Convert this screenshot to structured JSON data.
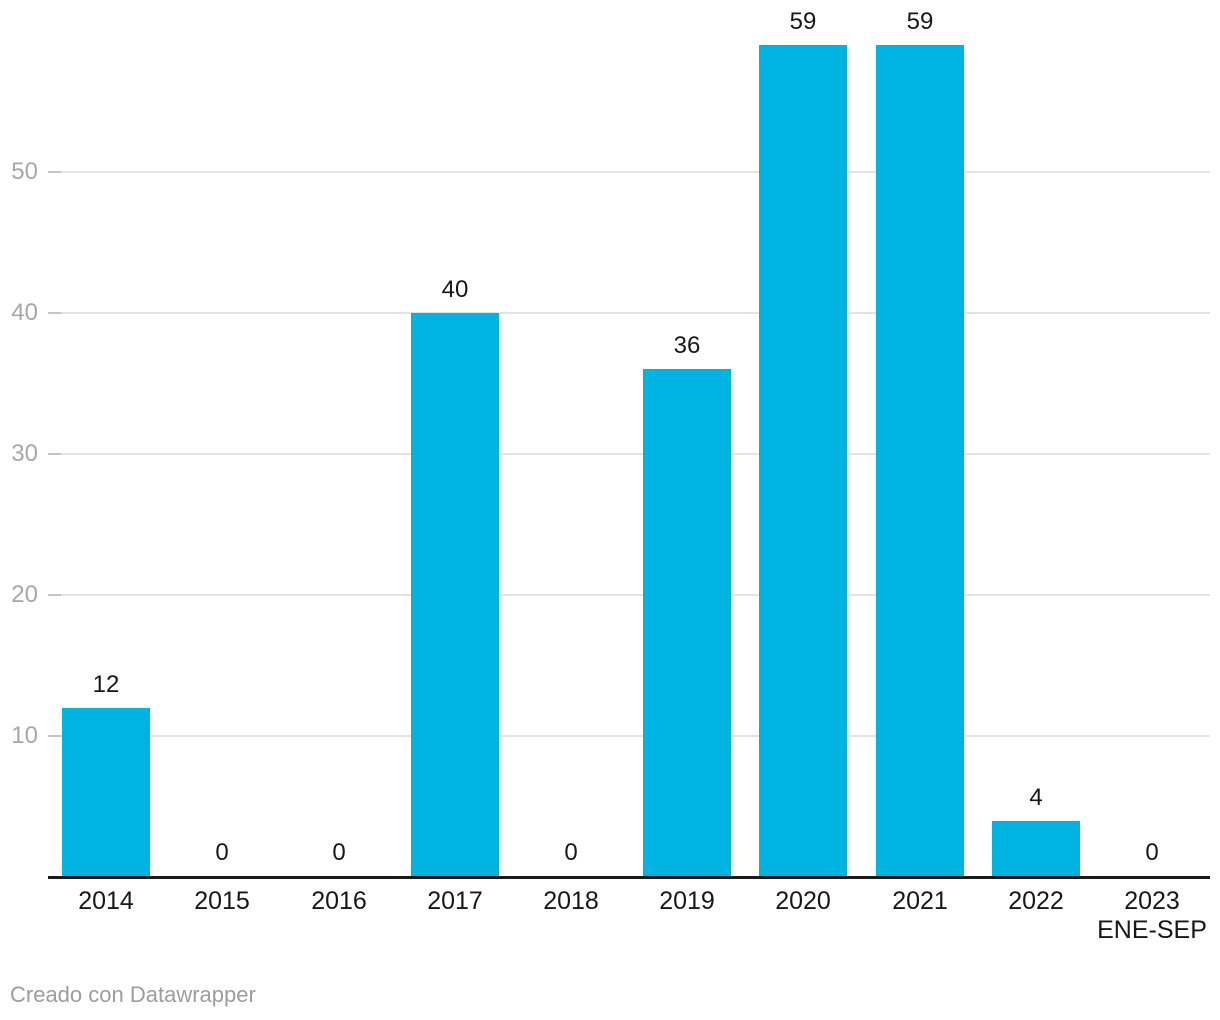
{
  "chart_data": {
    "type": "bar",
    "categories": [
      "2014",
      "2015",
      "2016",
      "2017",
      "2018",
      "2019",
      "2020",
      "2021",
      "2022",
      "2023"
    ],
    "category_sublabels": [
      "",
      "",
      "",
      "",
      "",
      "",
      "",
      "",
      "",
      "ENE-SEP"
    ],
    "values": [
      12,
      0,
      0,
      40,
      0,
      36,
      59,
      59,
      4,
      0
    ],
    "value_labels": [
      "12",
      "0",
      "0",
      "40",
      "0",
      "36",
      "59",
      "59",
      "4",
      "0"
    ],
    "title": "",
    "xlabel": "",
    "ylabel": "",
    "ylim": [
      0,
      59
    ],
    "yticks": [
      10,
      20,
      30,
      40,
      50
    ],
    "grid": true,
    "legend": "none"
  },
  "footer": {
    "credit": "Creado con Datawrapper"
  },
  "colors": {
    "bar": "#00b4e1",
    "gridline": "#e3e3e3",
    "axis_tick": "#c5c5c5",
    "axis_line": "#1a1a1b",
    "value_label": "#18181a",
    "x_label": "#18181a",
    "y_label": "#a8a8a8",
    "footer_text": "#9d9d9d",
    "background": "#ffffff"
  }
}
